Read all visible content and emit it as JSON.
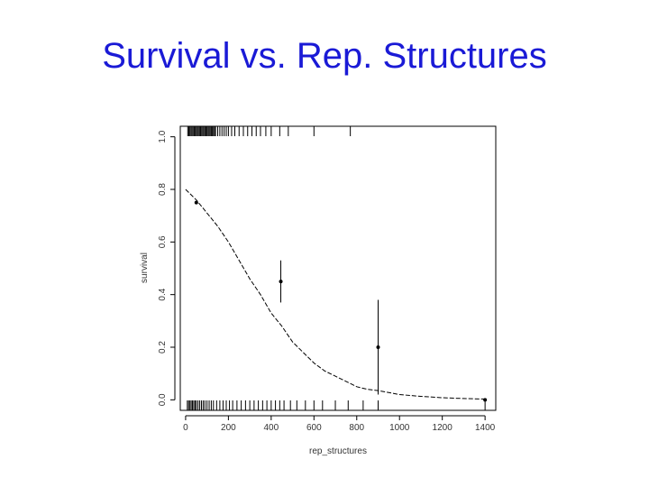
{
  "slide": {
    "title": "Survival vs. Rep. Structures"
  },
  "chart_data": {
    "type": "scatter",
    "title": "",
    "xlabel": "rep_structures",
    "ylabel": "survival",
    "xlim": [
      -25,
      1450
    ],
    "ylim": [
      -0.04,
      1.04
    ],
    "x_ticks": [
      0,
      200,
      400,
      600,
      800,
      1000,
      1200,
      1400
    ],
    "y_ticks": [
      0,
      0.2,
      0.4,
      0.6,
      0.8,
      1.0
    ],
    "y_tick_labels": [
      "0.0",
      "0.2",
      "0.4",
      "0.6",
      "0.8",
      "1.0"
    ],
    "grid": false,
    "series": [
      {
        "kind": "points_with_error_bars",
        "points": [
          {
            "x": 50,
            "y": 0.75,
            "lower": null,
            "upper": null
          },
          {
            "x": 445,
            "y": 0.45,
            "lower": 0.37,
            "upper": 0.53
          },
          {
            "x": 900,
            "y": 0.2,
            "lower": 0.02,
            "upper": 0.38
          },
          {
            "x": 1400,
            "y": 0.0,
            "lower": null,
            "upper": null
          }
        ]
      },
      {
        "kind": "fitted_curve",
        "x": [
          0,
          50,
          100,
          150,
          200,
          250,
          300,
          350,
          400,
          450,
          500,
          550,
          600,
          650,
          700,
          750,
          800,
          850,
          900,
          1000,
          1100,
          1200,
          1300,
          1400
        ],
        "y": [
          0.8,
          0.76,
          0.71,
          0.66,
          0.6,
          0.53,
          0.46,
          0.4,
          0.33,
          0.28,
          0.22,
          0.18,
          0.14,
          0.11,
          0.09,
          0.07,
          0.05,
          0.04,
          0.035,
          0.02,
          0.013,
          0.008,
          0.005,
          0.003
        ]
      }
    ],
    "rug_top_x": [
      10,
      15,
      20,
      25,
      30,
      35,
      40,
      45,
      50,
      55,
      60,
      65,
      70,
      75,
      80,
      85,
      90,
      95,
      100,
      105,
      110,
      115,
      120,
      125,
      130,
      135,
      140,
      150,
      160,
      170,
      180,
      190,
      200,
      215,
      230,
      250,
      270,
      290,
      310,
      330,
      350,
      375,
      400,
      440,
      480,
      600,
      770
    ],
    "rug_bottom_x": [
      8,
      14,
      20,
      26,
      32,
      38,
      44,
      50,
      58,
      66,
      74,
      82,
      90,
      100,
      110,
      120,
      130,
      145,
      160,
      175,
      190,
      205,
      220,
      240,
      260,
      280,
      300,
      320,
      340,
      360,
      380,
      400,
      420,
      440,
      460,
      490,
      520,
      560,
      600,
      640,
      700,
      760,
      830,
      900,
      1400
    ]
  }
}
